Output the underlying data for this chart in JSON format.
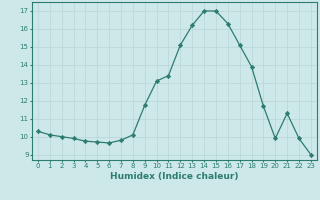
{
  "x": [
    0,
    1,
    2,
    3,
    4,
    5,
    6,
    7,
    8,
    9,
    10,
    11,
    12,
    13,
    14,
    15,
    16,
    17,
    18,
    19,
    20,
    21,
    22,
    23
  ],
  "y": [
    10.3,
    10.1,
    10.0,
    9.9,
    9.75,
    9.7,
    9.65,
    9.8,
    10.1,
    11.75,
    13.1,
    13.4,
    15.1,
    16.2,
    17.0,
    17.0,
    16.3,
    15.1,
    13.9,
    11.7,
    9.9,
    11.3,
    9.9,
    9.0
  ],
  "line_color": "#2d7d6e",
  "marker": "D",
  "marker_size": 2.2,
  "bg_color": "#cce8e8",
  "grid_color": "#b8d4d4",
  "xlabel": "Humidex (Indice chaleur)",
  "xlim": [
    -0.5,
    23.5
  ],
  "ylim": [
    8.7,
    17.5
  ],
  "yticks": [
    9,
    10,
    11,
    12,
    13,
    14,
    15,
    16,
    17
  ],
  "xticks": [
    0,
    1,
    2,
    3,
    4,
    5,
    6,
    7,
    8,
    9,
    10,
    11,
    12,
    13,
    14,
    15,
    16,
    17,
    18,
    19,
    20,
    21,
    22,
    23
  ],
  "tick_color": "#2d7d6e",
  "label_color": "#2d7d6e",
  "spine_color": "#2d7d6e",
  "tick_fontsize": 5.0,
  "xlabel_fontsize": 6.5
}
